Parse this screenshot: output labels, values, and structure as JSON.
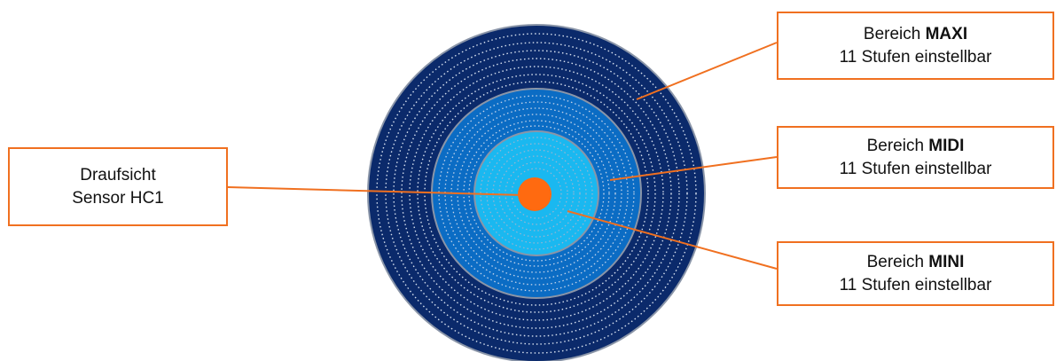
{
  "labels": {
    "sensor": {
      "line1": "Draufsicht",
      "line2": "Sensor HC1"
    },
    "maxi": {
      "prefix": "Bereich ",
      "name": "MAXI",
      "line2": "11 Stufen einstellbar"
    },
    "midi": {
      "prefix": "Bereich ",
      "name": "MIDI",
      "line2": "11 Stufen einstellbar"
    },
    "mini": {
      "prefix": "Bereich ",
      "name": "MINI",
      "line2": "11 Stufen einstellbar"
    }
  },
  "colors": {
    "maxi_zone": "#0b2a6b",
    "midi_zone": "#0b6cc4",
    "mini_zone": "#1ab8f0",
    "sensor": "#ff6a10",
    "leader": "#f07020",
    "zone_border": "#8a95a8",
    "dotted_rings": "#d8e2f0"
  }
}
